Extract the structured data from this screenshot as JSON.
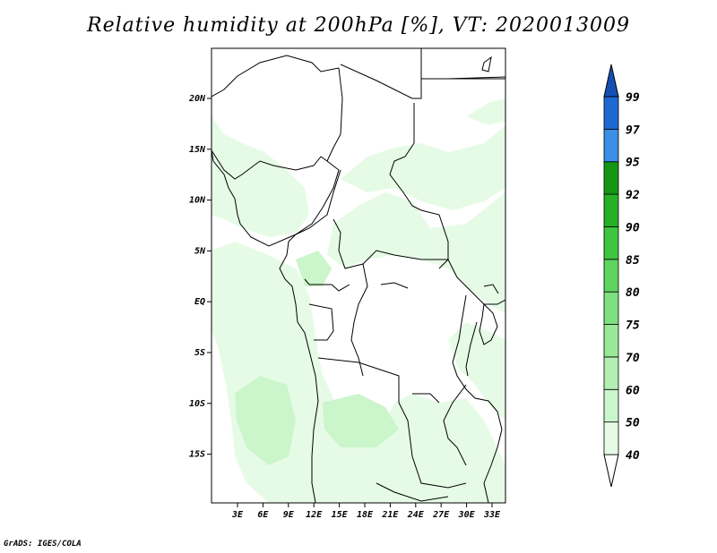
{
  "title": "Relative humidity at 200hPa [%], VT: 2020013009",
  "credit": "GrADS: IGES/COLA",
  "map": {
    "lon_range": [
      0,
      35
    ],
    "lat_range": [
      -20,
      25
    ],
    "lon_ticks": [
      "3E",
      "6E",
      "9E",
      "12E",
      "15E",
      "18E",
      "21E",
      "24E",
      "27E",
      "30E",
      "33E"
    ],
    "lat_ticks": [
      "20N",
      "15N",
      "10N",
      "5N",
      "EQ",
      "5S",
      "10S",
      "15S"
    ]
  },
  "colorbar": {
    "levels": [
      "40",
      "50",
      "60",
      "70",
      "75",
      "80",
      "85",
      "90",
      "92",
      "95",
      "97",
      "99"
    ],
    "colors": [
      "#ffffff",
      "#e6fbe6",
      "#cbf5cb",
      "#b3eeb3",
      "#98e898",
      "#7ee07e",
      "#5fd45f",
      "#3fc53f",
      "#26b026",
      "#149614",
      "#3d8ee6",
      "#1e68d2",
      "#1450b4"
    ]
  },
  "colors": {
    "border": "#000000",
    "shading_light": "#e6fbe6",
    "shading_mid": "#cbf5cb"
  }
}
